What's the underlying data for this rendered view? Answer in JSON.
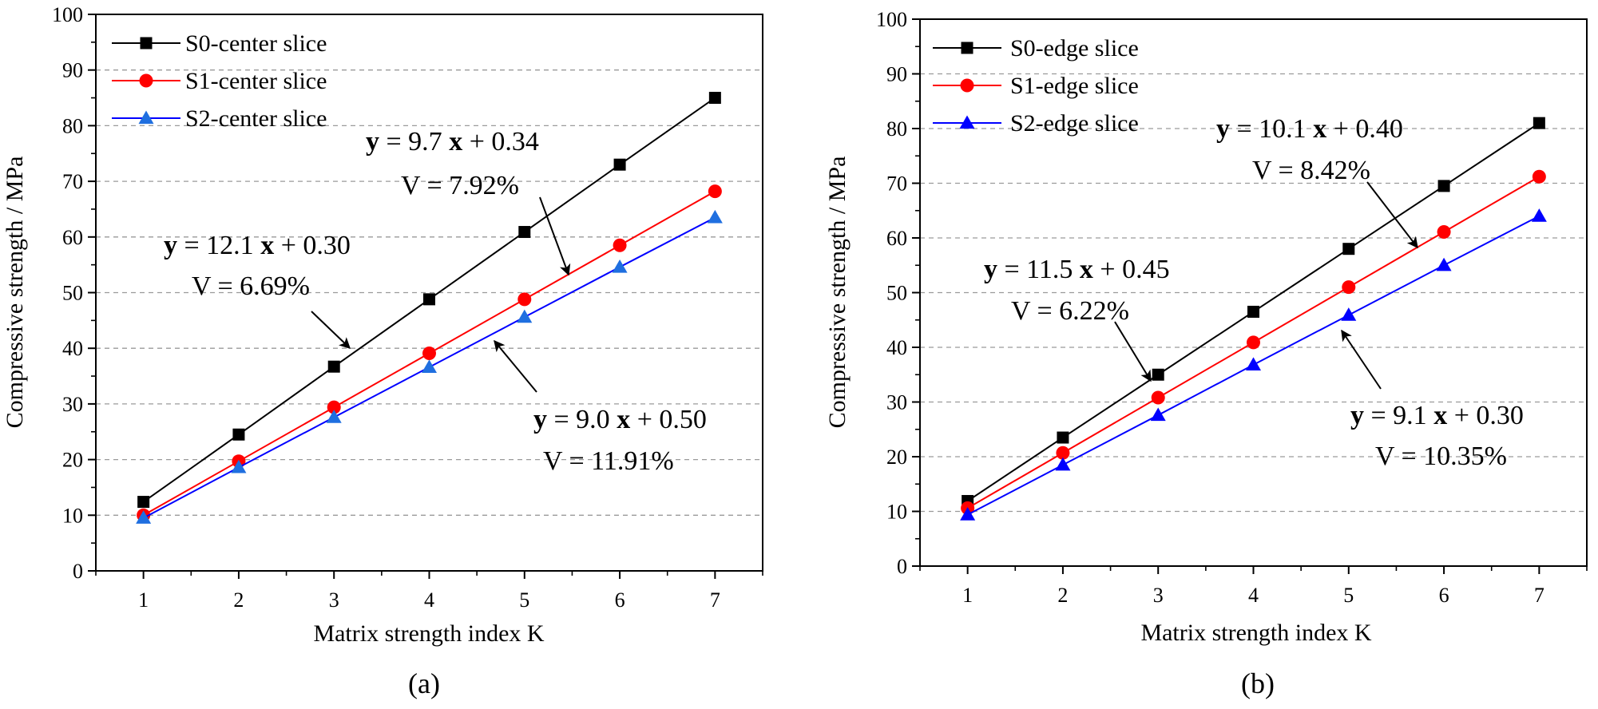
{
  "chart_data": [
    {
      "type": "line",
      "panel_label": "(a)",
      "xlabel": "Matrix strength index K",
      "ylabel": "Compressive strength / MPa",
      "x": [
        1,
        2,
        3,
        4,
        5,
        6,
        7
      ],
      "xlim": [
        0.5,
        7.5
      ],
      "xticks": [
        1,
        2,
        3,
        4,
        5,
        6,
        7
      ],
      "ylim": [
        0,
        100
      ],
      "yticks": [
        0,
        10,
        20,
        30,
        40,
        50,
        60,
        70,
        80,
        90,
        100
      ],
      "grid": "horizontal dashed",
      "legend_position": "top-left",
      "series": [
        {
          "name": "S0-center slice",
          "color": "#000000",
          "marker": "square",
          "values": [
            12.4,
            24.5,
            36.7,
            48.8,
            60.9,
            73.0,
            85.0
          ]
        },
        {
          "name": "S1-center slice",
          "color": "#ff0000",
          "marker": "circle",
          "values": [
            10.0,
            19.7,
            29.4,
            39.1,
            48.8,
            58.5,
            68.2
          ]
        },
        {
          "name": "S2-center slice",
          "color": "#0000ff",
          "marker": "triangle",
          "marker_color": "#1f6fe0",
          "values": [
            9.5,
            18.6,
            27.6,
            36.6,
            45.6,
            54.6,
            63.5
          ]
        }
      ],
      "annotations": [
        {
          "eq_y": "y",
          "eq_mid": " = 9.7 ",
          "eq_x": "x",
          "eq_end": " + 0.34",
          "v": "V = 7.92%"
        },
        {
          "eq_y": "y",
          "eq_mid": " = 12.1 ",
          "eq_x": "x",
          "eq_end": " + 0.30",
          "v": "V = 6.69%"
        },
        {
          "eq_y": "y",
          "eq_mid": " = 9.0 ",
          "eq_x": "x",
          "eq_end": " + 0.50",
          "v": "V = 11.91%"
        }
      ]
    },
    {
      "type": "line",
      "panel_label": "(b)",
      "xlabel": "Matrix strength index K",
      "ylabel": "Compressive strength / MPa",
      "x": [
        1,
        2,
        3,
        4,
        5,
        6,
        7
      ],
      "xlim": [
        0.5,
        7.5
      ],
      "xticks": [
        1,
        2,
        3,
        4,
        5,
        6,
        7
      ],
      "ylim": [
        0,
        100
      ],
      "yticks": [
        0,
        10,
        20,
        30,
        40,
        50,
        60,
        70,
        80,
        90,
        100
      ],
      "grid": "horizontal dashed",
      "legend_position": "top-left",
      "series": [
        {
          "name": "S0-edge slice",
          "color": "#000000",
          "marker": "square",
          "values": [
            11.9,
            23.5,
            35.0,
            46.5,
            58.0,
            69.5,
            81.0
          ]
        },
        {
          "name": "S1-edge slice",
          "color": "#ff0000",
          "marker": "circle",
          "values": [
            10.6,
            20.7,
            30.8,
            40.9,
            51.0,
            61.1,
            71.2
          ]
        },
        {
          "name": "S2-edge slice",
          "color": "#0000ff",
          "marker": "triangle",
          "marker_color": "#0000ff",
          "values": [
            9.4,
            18.5,
            27.6,
            36.8,
            45.9,
            55.0,
            64.0
          ]
        }
      ],
      "annotations": [
        {
          "eq_y": "y",
          "eq_mid": " = 10.1 ",
          "eq_x": "x",
          "eq_end": " + 0.40",
          "v": "V = 8.42%"
        },
        {
          "eq_y": "y",
          "eq_mid": " = 11.5 ",
          "eq_x": "x",
          "eq_end": " + 0.45",
          "v": "V = 6.22%"
        },
        {
          "eq_y": "y",
          "eq_mid": " = 9.1 ",
          "eq_x": "x",
          "eq_end": " + 0.30",
          "v": "V = 10.35%"
        }
      ]
    }
  ]
}
